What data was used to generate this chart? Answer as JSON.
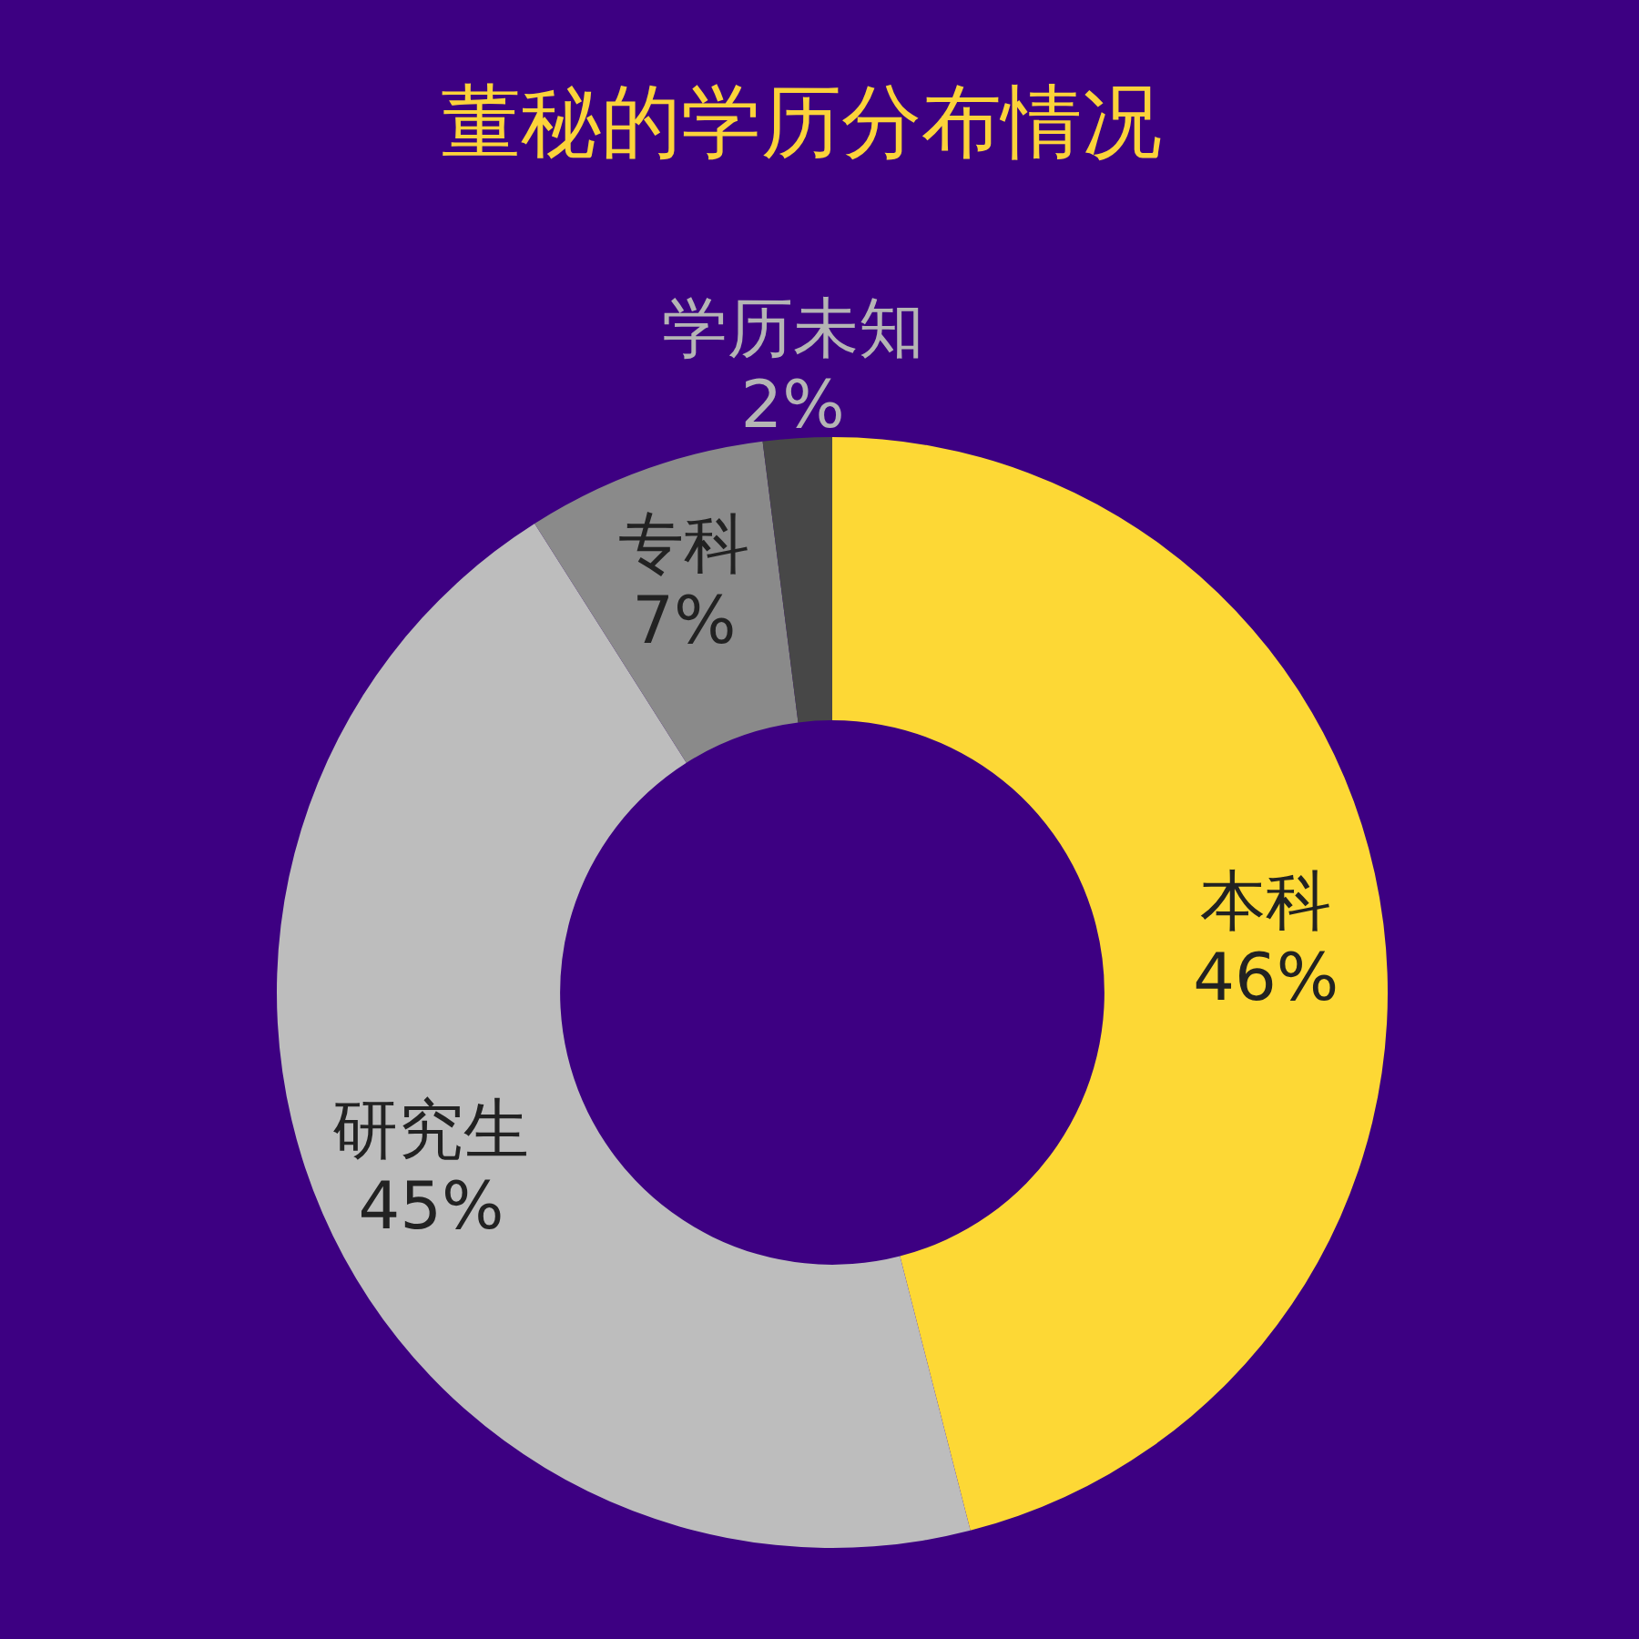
{
  "chart_data": {
    "type": "donut",
    "title": "董秘的学历分布情况",
    "categories": [
      "本科",
      "研究生",
      "专科",
      "学历未知"
    ],
    "values": [
      46,
      45,
      7,
      2
    ],
    "colors": [
      "#fdd835",
      "#bdbdbd",
      "#8a8a8a",
      "#474747"
    ],
    "value_labels": [
      "46%",
      "45%",
      "7%",
      "2%"
    ]
  }
}
